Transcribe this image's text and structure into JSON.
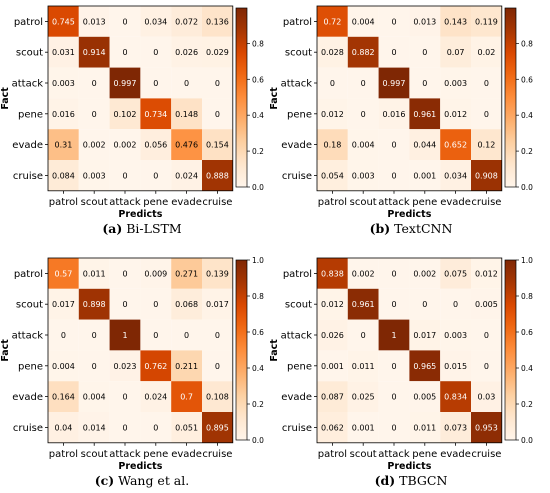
{
  "figure": {
    "axis_x_label": "Predicts",
    "axis_y_label": "Fact"
  },
  "chart_data": [
    {
      "type": "heatmap",
      "caption_letter": "(a)",
      "caption_text": "Bi-LSTM",
      "xlabel": "Predicts",
      "ylabel": "Fact",
      "categories": [
        "patrol",
        "scout",
        "attack",
        "pene",
        "evade",
        "cruise"
      ],
      "colorbar_ticks": [
        0.0,
        0.2,
        0.4,
        0.6,
        0.8
      ],
      "colorbar_max": 0.997,
      "values": [
        [
          0.745,
          0.013,
          0.0,
          0.034,
          0.072,
          0.136
        ],
        [
          0.031,
          0.914,
          0.0,
          0.0,
          0.026,
          0.029
        ],
        [
          0.003,
          0.0,
          0.997,
          0.0,
          0.0,
          0.0
        ],
        [
          0.016,
          0.0,
          0.102,
          0.734,
          0.148,
          0.0
        ],
        [
          0.31,
          0.002,
          0.002,
          0.056,
          0.476,
          0.154
        ],
        [
          0.084,
          0.003,
          0.0,
          0.0,
          0.024,
          0.888
        ]
      ]
    },
    {
      "type": "heatmap",
      "caption_letter": "(b)",
      "caption_text": "TextCNN",
      "xlabel": "Predicts",
      "ylabel": "Fact",
      "categories": [
        "patrol",
        "scout",
        "attack",
        "pene",
        "evade",
        "cruise"
      ],
      "colorbar_ticks": [
        0.0,
        0.2,
        0.4,
        0.6,
        0.8
      ],
      "colorbar_max": 0.997,
      "values": [
        [
          0.72,
          0.004,
          0.0,
          0.013,
          0.143,
          0.119
        ],
        [
          0.028,
          0.882,
          0.0,
          0.0,
          0.07,
          0.02
        ],
        [
          0.0,
          0.0,
          0.997,
          0.0,
          0.003,
          0.0
        ],
        [
          0.012,
          0.0,
          0.016,
          0.961,
          0.012,
          0.0
        ],
        [
          0.18,
          0.004,
          0.0,
          0.044,
          0.652,
          0.12
        ],
        [
          0.054,
          0.003,
          0.0,
          0.001,
          0.034,
          0.908
        ]
      ]
    },
    {
      "type": "heatmap",
      "caption_letter": "(c)",
      "caption_text": "Wang et al.",
      "xlabel": "Predicts",
      "ylabel": "Fact",
      "categories": [
        "patrol",
        "scout",
        "attack",
        "pene",
        "evade",
        "cruise"
      ],
      "colorbar_ticks": [
        0.0,
        0.2,
        0.4,
        0.6,
        0.8,
        1.0
      ],
      "colorbar_max": 1.0,
      "values": [
        [
          0.57,
          0.011,
          0.0,
          0.009,
          0.271,
          0.139
        ],
        [
          0.017,
          0.898,
          0.0,
          0.0,
          0.068,
          0.017
        ],
        [
          0.0,
          0.0,
          1.0,
          0.0,
          0.0,
          0.0
        ],
        [
          0.004,
          0.0,
          0.023,
          0.762,
          0.211,
          0.0
        ],
        [
          0.164,
          0.004,
          0.0,
          0.024,
          0.7,
          0.108
        ],
        [
          0.04,
          0.014,
          0.0,
          0.0,
          0.051,
          0.895
        ]
      ]
    },
    {
      "type": "heatmap",
      "caption_letter": "(d)",
      "caption_text": "TBGCN",
      "xlabel": "Predicts",
      "ylabel": "Fact",
      "categories": [
        "patrol",
        "scout",
        "attack",
        "pene",
        "evade",
        "cruise"
      ],
      "colorbar_ticks": [
        0.0,
        0.2,
        0.4,
        0.6,
        0.8,
        1.0
      ],
      "colorbar_max": 1.0,
      "values": [
        [
          0.838,
          0.002,
          0.0,
          0.002,
          0.075,
          0.012
        ],
        [
          0.012,
          0.961,
          0.0,
          0.0,
          0.0,
          0.005
        ],
        [
          0.026,
          0.0,
          1.0,
          0.017,
          0.003,
          0.0
        ],
        [
          0.001,
          0.011,
          0.0,
          0.965,
          0.015,
          0.0
        ],
        [
          0.087,
          0.025,
          0.0,
          0.005,
          0.834,
          0.03
        ],
        [
          0.062,
          0.001,
          0.0,
          0.011,
          0.073,
          0.953
        ]
      ]
    }
  ]
}
